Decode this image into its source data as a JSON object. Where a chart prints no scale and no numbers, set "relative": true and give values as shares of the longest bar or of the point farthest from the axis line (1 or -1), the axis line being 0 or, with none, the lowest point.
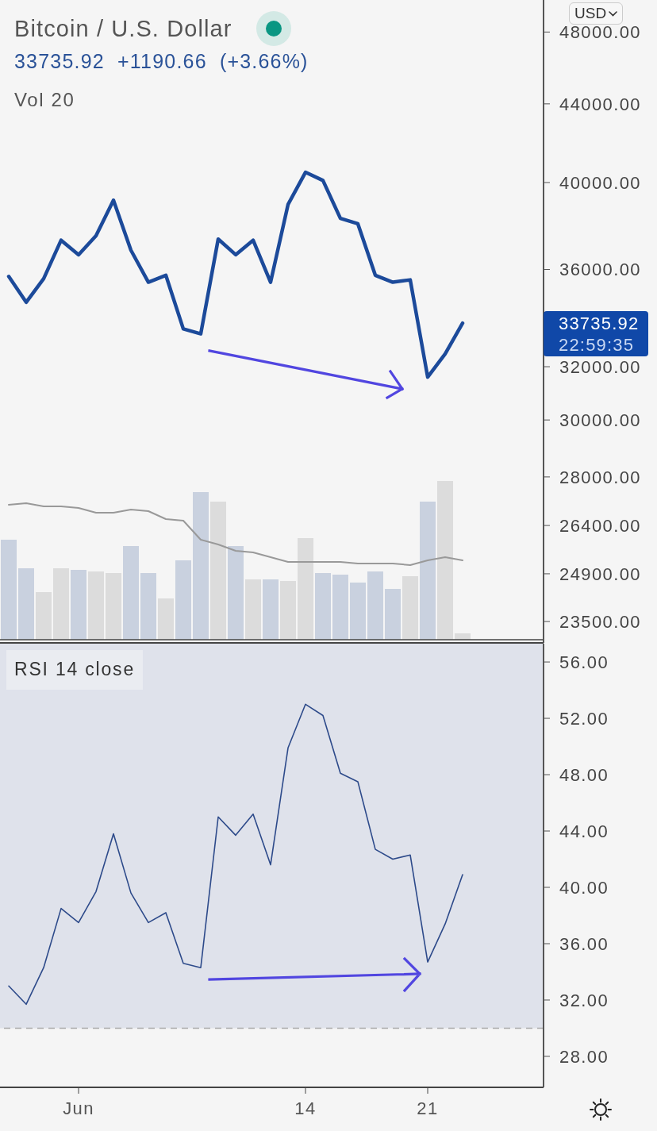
{
  "chart_data": [
    {
      "type": "line",
      "title": "Bitcoin / U.S. Dollar",
      "subtitle": "33735.92 +1190.66 (+3.66%)",
      "categories": [
        null,
        null,
        null,
        null,
        null,
        null,
        null,
        null,
        null,
        null,
        null,
        null,
        null,
        null,
        null,
        null,
        null,
        null,
        null,
        null,
        null,
        null,
        null,
        null,
        null,
        null,
        null
      ],
      "series": [
        {
          "color": "#1c4a9a",
          "values": [
            35700,
            34600,
            35600,
            37300,
            36650,
            37500,
            39150,
            36850,
            35450,
            35750,
            33500,
            33300,
            37350,
            36650,
            37300,
            35450,
            38950,
            40500,
            40100,
            38300,
            38050,
            35750,
            35450,
            35550,
            31600,
            32500,
            33735.92
          ]
        }
      ],
      "log": "y",
      "ylim": [
        22900,
        49900
      ],
      "yticks": [
        {
          "value": 48000,
          "label": "48000.00"
        },
        {
          "value": 44000,
          "label": "44000.00"
        },
        {
          "value": 40000,
          "label": "40000.00"
        },
        {
          "value": 36000,
          "label": "36000.00"
        },
        {
          "value": 32000,
          "label": "32000.00"
        },
        {
          "value": 30000,
          "label": "30000.00"
        },
        {
          "value": 28000,
          "label": "28000.00"
        },
        {
          "value": 26400,
          "label": "26400.00"
        },
        {
          "value": 24900,
          "label": "24900.00"
        },
        {
          "value": 23500,
          "label": "23500.00"
        }
      ],
      "annotations": [
        "33735.92",
        "22:59:35",
        "USD"
      ]
    },
    {
      "type": "bar",
      "title": "Vol 20",
      "relative": true,
      "categories": [
        null,
        null,
        null,
        null,
        null,
        null,
        null,
        null,
        null,
        null,
        null,
        null,
        null,
        null,
        null,
        null,
        null,
        null,
        null,
        null,
        null,
        null,
        null,
        null,
        null,
        null,
        null
      ],
      "series": [
        {
          "colors": [
            "#c9d1df",
            "#c9d1df",
            "#dcdcdc",
            "#dcdcdc",
            "#c9d1df",
            "#dcdcdc",
            "#dcdcdc",
            "#c9d1df",
            "#c9d1df",
            "#dcdcdc",
            "#c9d1df",
            "#c9d1df",
            "#dcdcdc",
            "#c9d1df",
            "#dcdcdc",
            "#c9d1df",
            "#dcdcdc",
            "#dcdcdc",
            "#c9d1df",
            "#c9d1df",
            "#c9d1df",
            "#c9d1df",
            "#c9d1df",
            "#dcdcdc",
            "#c9d1df",
            "#dcdcdc",
            "#dcdcdc"
          ],
          "values": [
            0.63,
            0.45,
            0.3,
            0.45,
            0.44,
            0.43,
            0.42,
            0.59,
            0.42,
            0.26,
            0.5,
            0.93,
            0.87,
            0.59,
            0.38,
            0.38,
            0.37,
            0.64,
            0.42,
            0.41,
            0.36,
            0.43,
            0.32,
            0.4,
            0.87,
            1,
            0.04
          ]
        },
        {
          "type": "line",
          "color": "#999999",
          "values": [
            0.85,
            0.86,
            0.84,
            0.84,
            0.83,
            0.8,
            0.8,
            0.82,
            0.81,
            0.76,
            0.75,
            0.63,
            0.6,
            0.56,
            0.55,
            0.52,
            0.49,
            0.49,
            0.49,
            0.49,
            0.48,
            0.48,
            0.48,
            0.47,
            0.5,
            0.52,
            0.5
          ]
        }
      ]
    },
    {
      "type": "line",
      "title": "RSI 14 close",
      "categories": [
        null,
        null,
        null,
        null,
        "Jun",
        null,
        null,
        null,
        null,
        null,
        null,
        null,
        null,
        null,
        null,
        null,
        null,
        "14",
        null,
        null,
        null,
        null,
        null,
        null,
        "21",
        null,
        null
      ],
      "series": [
        {
          "color": "#2d4a8a",
          "values": [
            33.0,
            31.7,
            34.3,
            38.5,
            37.5,
            39.7,
            43.8,
            39.6,
            37.5,
            38.2,
            34.6,
            34.3,
            45.0,
            43.7,
            45.2,
            41.6,
            49.9,
            53.0,
            52.2,
            48.1,
            47.5,
            42.7,
            42.0,
            42.3,
            34.7,
            37.4,
            40.9
          ]
        }
      ],
      "ylim": [
        25.8,
        57.3
      ],
      "yticks": [
        {
          "value": 28,
          "label": "28.00"
        },
        {
          "value": 32,
          "label": "32.00"
        },
        {
          "value": 36,
          "label": "36.00"
        },
        {
          "value": 40,
          "label": "40.00"
        },
        {
          "value": 44,
          "label": "44.00"
        },
        {
          "value": 48,
          "label": "48.00"
        },
        {
          "value": 52,
          "label": "52.00"
        },
        {
          "value": 56,
          "label": "56.00"
        }
      ],
      "bands": [
        {
          "axis": "y",
          "from": 30,
          "to": 57.3,
          "color": "#dfe2eb"
        }
      ],
      "ref_lines": [
        {
          "axis": "y",
          "value": 30,
          "color": "#aaaaaa",
          "line_style": "dashed"
        }
      ]
    }
  ]
}
